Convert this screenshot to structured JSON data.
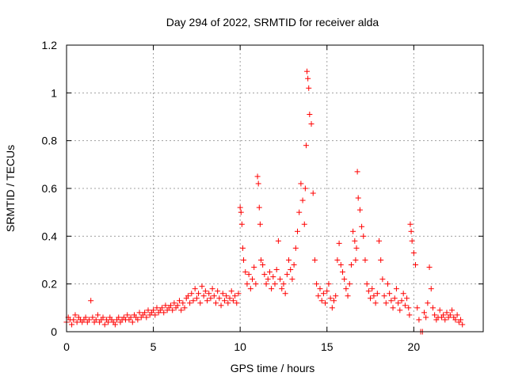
{
  "chart_data": {
    "type": "scatter",
    "title": "Day 294 of 2022, SRMTID for receiver alda",
    "xlabel": "GPS time / hours",
    "ylabel": "SRMTID / TECUs",
    "xlim": [
      0,
      24
    ],
    "ylim": [
      0,
      1.2
    ],
    "xticks": [
      0,
      5,
      10,
      15,
      20
    ],
    "yticks": [
      0,
      0.2,
      0.4,
      0.6,
      0.8,
      1,
      1.2
    ],
    "ytick_labels": [
      "0",
      "0.2",
      "0.4",
      "0.6",
      "0.8",
      "1",
      "1.2"
    ],
    "grid": true,
    "marker": "+",
    "color": "#ff0000",
    "series": [
      {
        "name": "SRMTID",
        "x": [
          0.0,
          0.1,
          0.2,
          0.3,
          0.4,
          0.5,
          0.6,
          0.7,
          0.8,
          0.9,
          1.0,
          1.1,
          1.2,
          1.3,
          1.4,
          1.5,
          1.6,
          1.7,
          1.8,
          1.9,
          2.0,
          2.1,
          2.2,
          2.3,
          2.4,
          2.5,
          2.6,
          2.7,
          2.8,
          2.9,
          3.0,
          3.1,
          3.2,
          3.3,
          3.4,
          3.5,
          3.6,
          3.7,
          3.8,
          3.9,
          4.0,
          4.1,
          4.2,
          4.3,
          4.4,
          4.5,
          4.6,
          4.7,
          4.8,
          4.9,
          5.0,
          5.1,
          5.2,
          5.3,
          5.4,
          5.5,
          5.6,
          5.7,
          5.8,
          5.9,
          6.0,
          6.1,
          6.2,
          6.3,
          6.4,
          6.5,
          6.6,
          6.7,
          6.8,
          6.9,
          7.0,
          7.1,
          7.2,
          7.3,
          7.4,
          7.5,
          7.6,
          7.7,
          7.8,
          7.9,
          8.0,
          8.1,
          8.2,
          8.3,
          8.4,
          8.5,
          8.6,
          8.7,
          8.8,
          8.9,
          9.0,
          9.1,
          9.2,
          9.3,
          9.4,
          9.5,
          9.6,
          9.7,
          9.8,
          9.9,
          10.0,
          10.05,
          10.1,
          10.15,
          10.2,
          10.3,
          10.4,
          10.5,
          10.6,
          10.7,
          10.8,
          10.9,
          11.0,
          11.05,
          11.1,
          11.15,
          11.2,
          11.3,
          11.4,
          11.5,
          11.6,
          11.7,
          11.8,
          11.9,
          12.0,
          12.1,
          12.2,
          12.3,
          12.4,
          12.5,
          12.6,
          12.7,
          12.8,
          12.9,
          13.0,
          13.1,
          13.2,
          13.3,
          13.4,
          13.5,
          13.6,
          13.7,
          13.75,
          13.8,
          13.85,
          13.9,
          13.95,
          14.0,
          14.1,
          14.2,
          14.3,
          14.4,
          14.5,
          14.6,
          14.7,
          14.8,
          14.9,
          15.0,
          15.1,
          15.2,
          15.3,
          15.4,
          15.5,
          15.6,
          15.7,
          15.8,
          15.9,
          16.0,
          16.1,
          16.2,
          16.3,
          16.4,
          16.5,
          16.6,
          16.65,
          16.7,
          16.75,
          16.8,
          16.9,
          17.0,
          17.1,
          17.2,
          17.3,
          17.4,
          17.5,
          17.6,
          17.7,
          17.8,
          17.9,
          18.0,
          18.1,
          18.2,
          18.3,
          18.4,
          18.5,
          18.6,
          18.7,
          18.8,
          18.9,
          19.0,
          19.1,
          19.2,
          19.3,
          19.4,
          19.5,
          19.6,
          19.7,
          19.75,
          19.8,
          19.85,
          19.9,
          20.0,
          20.1,
          20.2,
          20.3,
          20.4,
          20.5,
          20.6,
          20.7,
          20.8,
          20.9,
          21.0,
          21.1,
          21.2,
          21.3,
          21.4,
          21.5,
          21.6,
          21.7,
          21.8,
          21.9,
          22.0,
          22.1,
          22.2,
          22.3,
          22.4,
          22.5,
          22.6,
          22.7,
          22.8
        ],
        "y": [
          0.04,
          0.06,
          0.05,
          0.03,
          0.05,
          0.07,
          0.04,
          0.06,
          0.05,
          0.04,
          0.05,
          0.06,
          0.04,
          0.05,
          0.13,
          0.06,
          0.04,
          0.05,
          0.07,
          0.04,
          0.05,
          0.06,
          0.03,
          0.05,
          0.04,
          0.06,
          0.05,
          0.04,
          0.03,
          0.05,
          0.06,
          0.04,
          0.05,
          0.06,
          0.05,
          0.07,
          0.05,
          0.06,
          0.04,
          0.07,
          0.06,
          0.05,
          0.08,
          0.06,
          0.07,
          0.08,
          0.06,
          0.09,
          0.07,
          0.08,
          0.09,
          0.07,
          0.1,
          0.08,
          0.09,
          0.1,
          0.08,
          0.11,
          0.09,
          0.1,
          0.11,
          0.09,
          0.12,
          0.1,
          0.11,
          0.13,
          0.09,
          0.12,
          0.1,
          0.14,
          0.15,
          0.12,
          0.16,
          0.13,
          0.18,
          0.14,
          0.16,
          0.12,
          0.19,
          0.15,
          0.17,
          0.13,
          0.16,
          0.14,
          0.18,
          0.15,
          0.12,
          0.17,
          0.14,
          0.11,
          0.16,
          0.13,
          0.15,
          0.12,
          0.14,
          0.17,
          0.13,
          0.15,
          0.12,
          0.16,
          0.52,
          0.5,
          0.45,
          0.35,
          0.3,
          0.25,
          0.2,
          0.24,
          0.18,
          0.22,
          0.27,
          0.2,
          0.65,
          0.62,
          0.52,
          0.45,
          0.3,
          0.28,
          0.24,
          0.2,
          0.22,
          0.25,
          0.18,
          0.23,
          0.2,
          0.26,
          0.38,
          0.22,
          0.18,
          0.2,
          0.16,
          0.24,
          0.3,
          0.26,
          0.22,
          0.28,
          0.35,
          0.42,
          0.5,
          0.62,
          0.55,
          0.45,
          0.6,
          0.78,
          1.09,
          1.06,
          1.02,
          0.91,
          0.87,
          0.58,
          0.3,
          0.2,
          0.15,
          0.18,
          0.13,
          0.16,
          0.12,
          0.17,
          0.2,
          0.14,
          0.1,
          0.13,
          0.15,
          0.3,
          0.37,
          0.28,
          0.25,
          0.22,
          0.18,
          0.15,
          0.2,
          0.28,
          0.42,
          0.38,
          0.3,
          0.35,
          0.67,
          0.56,
          0.51,
          0.44,
          0.4,
          0.3,
          0.2,
          0.17,
          0.14,
          0.18,
          0.15,
          0.12,
          0.16,
          0.38,
          0.3,
          0.22,
          0.15,
          0.12,
          0.2,
          0.16,
          0.13,
          0.1,
          0.14,
          0.18,
          0.12,
          0.09,
          0.13,
          0.16,
          0.11,
          0.14,
          0.1,
          0.07,
          0.45,
          0.42,
          0.38,
          0.33,
          0.28,
          0.1,
          0.05,
          0.0,
          0.0,
          0.08,
          0.06,
          0.12,
          0.27,
          0.18,
          0.1,
          0.07,
          0.05,
          0.06,
          0.09,
          0.06,
          0.07,
          0.05,
          0.08,
          0.06,
          0.07,
          0.09,
          0.06,
          0.05,
          0.07,
          0.04,
          0.05,
          0.03
        ]
      }
    ]
  }
}
